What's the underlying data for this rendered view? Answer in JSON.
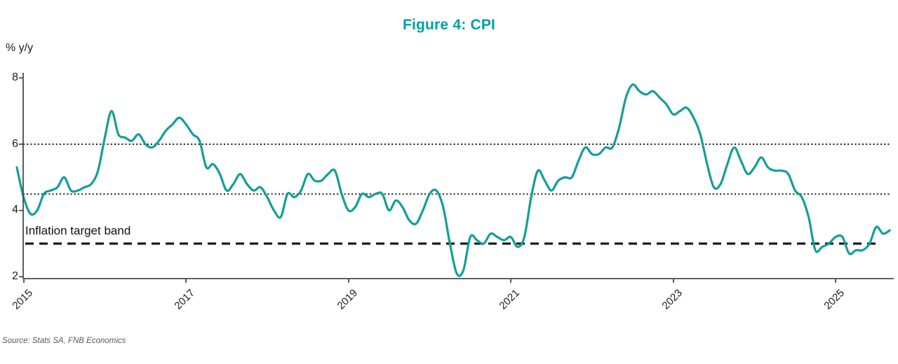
{
  "title": "Figure 4: CPI",
  "y_axis_unit_label": "% y/y",
  "annotations": {
    "target_band_label": "Inflation target band"
  },
  "source": "Source: Stats SA, FNB Economics",
  "colors": {
    "title_teal": "#00A0A6",
    "line_teal": "#149E98",
    "axis": "#4a4a4a",
    "reference_line": "#1a1a1a",
    "source_text": "#595959"
  },
  "chart_data": {
    "type": "line",
    "title": "Figure 4: CPI",
    "ylabel": "% y/y",
    "ylim": [
      2,
      8
    ],
    "y_ticks": [
      2,
      4,
      6,
      8
    ],
    "x_tick_labels": [
      "2015",
      "2017",
      "2019",
      "2021",
      "2023",
      "2025"
    ],
    "legend": "none",
    "grid": "off",
    "reference_lines": [
      {
        "value": 6.0,
        "style": "dotted",
        "color": "#1a1a1a"
      },
      {
        "value": 4.5,
        "style": "dotted",
        "color": "#1a1a1a"
      },
      {
        "value": 3.0,
        "style": "dashed",
        "color": "#1a1a1a",
        "label": "Inflation target band"
      }
    ],
    "series": [
      {
        "name": "CPI % y/y",
        "start": "2014-12",
        "frequency": "monthly",
        "values": [
          5.3,
          4.4,
          3.9,
          4.0,
          4.5,
          4.6,
          4.7,
          5.0,
          4.6,
          4.6,
          4.7,
          4.8,
          5.2,
          6.2,
          7.0,
          6.3,
          6.2,
          6.1,
          6.3,
          6.0,
          5.9,
          6.1,
          6.4,
          6.6,
          6.8,
          6.6,
          6.3,
          6.1,
          5.3,
          5.4,
          5.1,
          4.6,
          4.8,
          5.1,
          4.8,
          4.6,
          4.7,
          4.4,
          4.0,
          3.8,
          4.5,
          4.4,
          4.6,
          5.1,
          4.9,
          4.9,
          5.1,
          5.2,
          4.5,
          4.0,
          4.1,
          4.5,
          4.4,
          4.5,
          4.5,
          4.0,
          4.3,
          4.1,
          3.7,
          3.6,
          4.0,
          4.5,
          4.6,
          4.1,
          3.0,
          2.1,
          2.2,
          3.2,
          3.1,
          3.0,
          3.3,
          3.2,
          3.1,
          3.2,
          2.9,
          3.2,
          4.4,
          5.2,
          4.9,
          4.6,
          4.9,
          5.0,
          5.0,
          5.5,
          5.9,
          5.7,
          5.7,
          5.9,
          5.9,
          6.5,
          7.4,
          7.8,
          7.6,
          7.5,
          7.6,
          7.4,
          7.2,
          6.9,
          7.0,
          7.1,
          6.8,
          6.3,
          5.4,
          4.7,
          4.8,
          5.4,
          5.9,
          5.5,
          5.1,
          5.3,
          5.6,
          5.3,
          5.2,
          5.2,
          5.1,
          4.6,
          4.4,
          3.8,
          2.8,
          2.9,
          3.0,
          3.2,
          3.2,
          2.7,
          2.8,
          2.8,
          3.0,
          3.5,
          3.3,
          3.4
        ]
      }
    ]
  }
}
